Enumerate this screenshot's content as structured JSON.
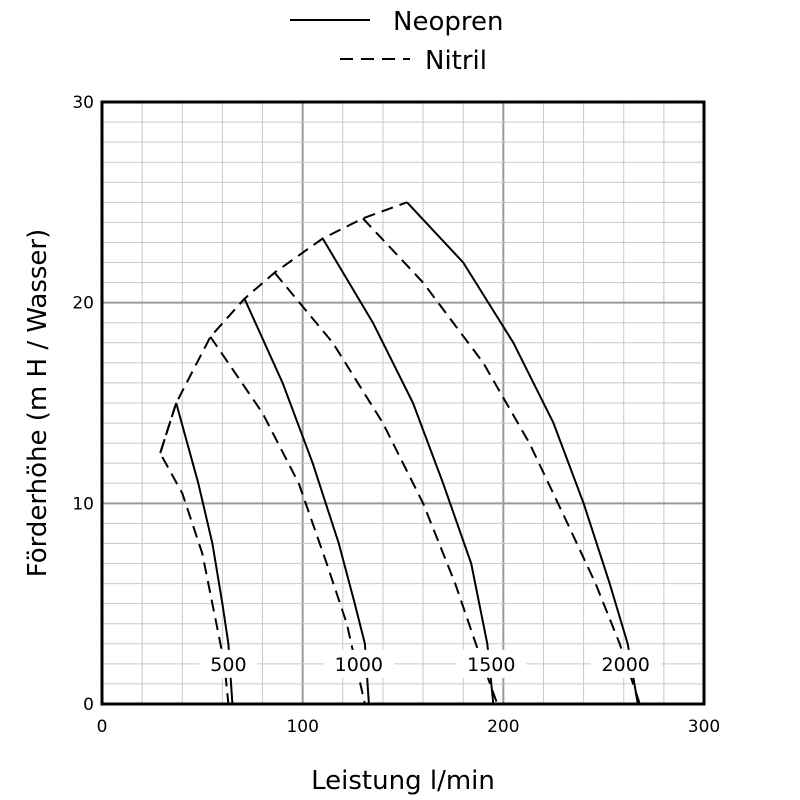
{
  "chart_data": {
    "type": "line",
    "xlabel": "Leistung l/min",
    "ylabel": "Förderhöhe (m H / Wasser)",
    "xlim": [
      0,
      300
    ],
    "ylim": [
      0,
      30
    ],
    "x_ticks": [
      "0",
      "100",
      "200",
      "300"
    ],
    "y_ticks": [
      "0",
      "10",
      "20",
      "30"
    ],
    "grid": "on",
    "legend": {
      "placement": "top-center",
      "entries": [
        {
          "label": "Neopren",
          "style": "solid"
        },
        {
          "label": "Nitril",
          "style": "dashed"
        }
      ]
    },
    "speed_labels": [
      {
        "text": "500",
        "x": 63,
        "y": 2
      },
      {
        "text": "1000",
        "x": 128,
        "y": 2
      },
      {
        "text": "1500",
        "x": 194,
        "y": 2
      },
      {
        "text": "2000",
        "x": 261,
        "y": 2
      }
    ],
    "series": [
      {
        "name": "Neopren",
        "speed": "500",
        "style": "solid",
        "points": [
          [
            37,
            15
          ],
          [
            48,
            11
          ],
          [
            55,
            8
          ],
          [
            60,
            5
          ],
          [
            63,
            3
          ],
          [
            65,
            0
          ]
        ]
      },
      {
        "name": "Neopren",
        "speed": "1000",
        "style": "solid",
        "points": [
          [
            71,
            20.2
          ],
          [
            90,
            16
          ],
          [
            105,
            12
          ],
          [
            118,
            8
          ],
          [
            126,
            5
          ],
          [
            131,
            3
          ],
          [
            133,
            0
          ]
        ]
      },
      {
        "name": "Neopren",
        "speed": "1500",
        "style": "solid",
        "points": [
          [
            110,
            23.2
          ],
          [
            135,
            19
          ],
          [
            155,
            15
          ],
          [
            170,
            11
          ],
          [
            184,
            7
          ],
          [
            192,
            3
          ],
          [
            195,
            0
          ]
        ]
      },
      {
        "name": "Neopren",
        "speed": "2000",
        "style": "solid",
        "points": [
          [
            152,
            25
          ],
          [
            180,
            22
          ],
          [
            205,
            18
          ],
          [
            225,
            14
          ],
          [
            240,
            10
          ],
          [
            253,
            6
          ],
          [
            262,
            3
          ],
          [
            267,
            0
          ]
        ]
      },
      {
        "name": "Nitril",
        "speed": "500",
        "style": "dashed",
        "points": [
          [
            37,
            15
          ],
          [
            29,
            12.5
          ],
          [
            40,
            10.5
          ],
          [
            50,
            7.5
          ],
          [
            57,
            4
          ],
          [
            61,
            2
          ],
          [
            63,
            0
          ]
        ]
      },
      {
        "name": "Nitril",
        "speed": "1000",
        "style": "dashed",
        "points": [
          [
            54,
            18.3
          ],
          [
            80,
            14.5
          ],
          [
            98,
            11
          ],
          [
            112,
            7
          ],
          [
            122,
            4
          ],
          [
            131,
            0
          ]
        ]
      },
      {
        "name": "Nitril",
        "speed": "1500",
        "style": "dashed",
        "points": [
          [
            86,
            21.5
          ],
          [
            115,
            18
          ],
          [
            140,
            14
          ],
          [
            160,
            10
          ],
          [
            176,
            6
          ],
          [
            188,
            2.5
          ],
          [
            197,
            0
          ]
        ]
      },
      {
        "name": "Nitril",
        "speed": "2000",
        "style": "dashed",
        "points": [
          [
            130,
            24.2
          ],
          [
            160,
            21
          ],
          [
            190,
            17
          ],
          [
            213,
            13
          ],
          [
            232,
            9
          ],
          [
            246,
            6
          ],
          [
            258,
            3
          ],
          [
            268,
            0
          ]
        ]
      },
      {
        "name": "Nitril",
        "speed": "envelope",
        "style": "dashed",
        "points": [
          [
            29,
            12.5
          ],
          [
            37,
            15
          ],
          [
            54,
            18.3
          ],
          [
            71,
            20.2
          ],
          [
            86,
            21.5
          ],
          [
            110,
            23.2
          ],
          [
            130,
            24.2
          ],
          [
            152,
            25
          ]
        ]
      }
    ]
  }
}
